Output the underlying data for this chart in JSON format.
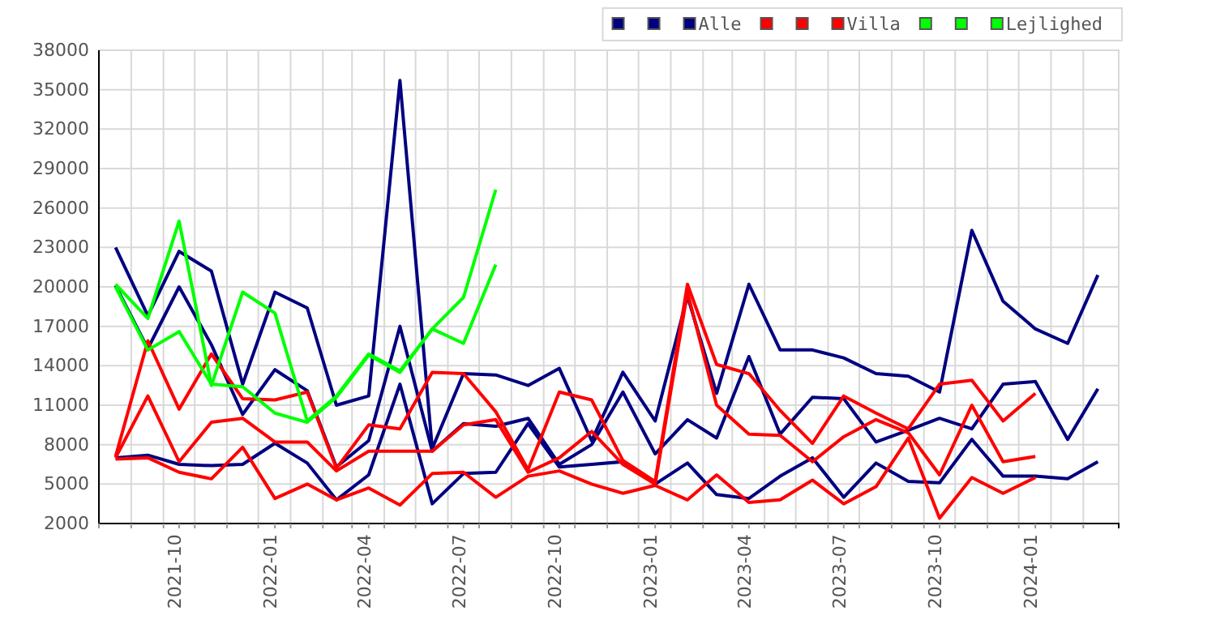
{
  "chart_data": {
    "type": "line",
    "legend": "top right",
    "grid": true,
    "line_style": "solid",
    "marker": "none",
    "x": [
      "2021-08",
      "2021-09",
      "2021-10",
      "2021-11",
      "2021-12",
      "2022-01",
      "2022-02",
      "2022-03",
      "2022-04",
      "2022-05",
      "2022-06",
      "2022-07",
      "2022-08",
      "2022-09",
      "2022-10",
      "2022-11",
      "2022-12",
      "2023-01",
      "2023-02",
      "2023-03",
      "2023-04",
      "2023-05",
      "2023-06",
      "2023-07",
      "2023-08",
      "2023-09",
      "2023-10",
      "2023-11",
      "2023-12",
      "2024-01",
      "2024-02",
      "2024-03"
    ],
    "xlim": [
      "2021-07-16",
      "2024-03-21"
    ],
    "xticks": [
      "2021-10",
      "2022-01",
      "2022-04",
      "2022-07",
      "2022-10",
      "2023-01",
      "2023-04",
      "2023-07",
      "2023-10",
      "2024-01",
      {
        "value": "2021-07-16",
        "label": null
      },
      {
        "value": "2021-08-16",
        "label": null
      },
      {
        "value": "2021-09-16",
        "label": null
      },
      {
        "value": "2021-10-16",
        "label": null
      },
      {
        "value": "2021-11-16",
        "label": null
      },
      {
        "value": "2021-12-16",
        "label": null
      },
      {
        "value": "2022-01-16",
        "label": null
      },
      {
        "value": "2022-02-16",
        "label": null
      },
      {
        "value": "2022-03-16",
        "label": null
      },
      {
        "value": "2022-04-16",
        "label": null
      },
      {
        "value": "2022-05-16",
        "label": null
      },
      {
        "value": "2022-06-16",
        "label": null
      },
      {
        "value": "2022-07-16",
        "label": null
      },
      {
        "value": "2022-08-16",
        "label": null
      },
      {
        "value": "2022-09-16",
        "label": null
      },
      {
        "value": "2022-10-16",
        "label": null
      },
      {
        "value": "2022-11-16",
        "label": null
      },
      {
        "value": "2022-12-16",
        "label": null
      },
      {
        "value": "2023-01-16",
        "label": null
      },
      {
        "value": "2023-02-16",
        "label": null
      },
      {
        "value": "2023-03-16",
        "label": null
      },
      {
        "value": "2023-04-16",
        "label": null
      },
      {
        "value": "2023-05-16",
        "label": null
      },
      {
        "value": "2023-06-16",
        "label": null
      },
      {
        "value": "2023-07-16",
        "label": null
      },
      {
        "value": "2023-08-16",
        "label": null
      },
      {
        "value": "2023-09-16",
        "label": null
      },
      {
        "value": "2023-10-16",
        "label": null
      },
      {
        "value": "2023-11-16",
        "label": null
      },
      {
        "value": "2023-12-16",
        "label": null
      },
      {
        "value": "2024-01-16",
        "label": null
      },
      {
        "value": "2024-02-16",
        "label": null
      }
    ],
    "ylim": [
      2000,
      38000
    ],
    "yticks": [
      2000,
      5000,
      8000,
      11000,
      14000,
      17000,
      20000,
      23000,
      26000,
      29000,
      32000,
      35000,
      38000
    ],
    "series": [
      {
        "color": "#000080",
        "values": [
          23000,
          17800,
          22700,
          21200,
          12600,
          19600,
          18400,
          11000,
          11700,
          35700,
          7700,
          13400,
          13300,
          12500,
          13800,
          8300,
          13500,
          9800,
          19300,
          11900,
          20200,
          15200,
          15200,
          14600,
          13400,
          13200,
          12000,
          24300,
          18900,
          16800,
          15700,
          20900
        ]
      },
      {
        "color": "#000080",
        "values": [
          20100,
          15300,
          20000,
          15600,
          10300,
          13700,
          12100,
          6300,
          8300,
          17000,
          7500,
          9600,
          9400,
          10000,
          6500,
          8000,
          12000,
          7300,
          9900,
          8500,
          14700,
          8800,
          11600,
          11500,
          8200,
          9100,
          10000,
          9200,
          12600,
          12800,
          8400,
          12250
        ]
      },
      {
        "name": "Alle",
        "color": "#000080",
        "values": [
          7000,
          7200,
          6500,
          6400,
          6500,
          8100,
          6600,
          3800,
          5700,
          12600,
          3500,
          5800,
          5900,
          9600,
          6300,
          6500,
          6700,
          5000,
          6600,
          4200,
          3900,
          5600,
          7000,
          4000,
          6600,
          5200,
          5100,
          8400,
          5600,
          5600,
          5400,
          6700
        ]
      },
      {
        "color": "#ff0000",
        "values": [
          7100,
          15900,
          10700,
          14900,
          11500,
          11400,
          12000,
          6200,
          9500,
          9200,
          13500,
          13400,
          10500,
          6100,
          12000,
          11400,
          6800,
          5200,
          20200,
          14100,
          13400,
          10600,
          8100,
          11700,
          10400,
          9200,
          12600,
          12900,
          9800,
          11900,
          null,
          null
        ]
      },
      {
        "color": "#ff0000",
        "values": [
          7000,
          11700,
          6700,
          9700,
          10000,
          8200,
          8200,
          6000,
          7500,
          7500,
          7500,
          9500,
          9900,
          5900,
          7000,
          9000,
          6500,
          5000,
          19600,
          11000,
          8800,
          8700,
          6700,
          8600,
          9900,
          8900,
          5700,
          11000,
          6700,
          7100,
          null,
          null
        ]
      },
      {
        "name": "Villa",
        "color": "#ff0000",
        "values": [
          6900,
          7000,
          5900,
          5400,
          7800,
          3900,
          5000,
          3800,
          4700,
          3400,
          5800,
          5900,
          4000,
          5600,
          6000,
          5000,
          4300,
          4900,
          3800,
          5700,
          3600,
          3800,
          5300,
          3500,
          4800,
          8500,
          2400,
          5500,
          4300,
          5500,
          null,
          null
        ]
      },
      {
        "color": "#00ff00",
        "values": [
          null,
          null,
          null,
          null,
          null,
          null,
          null,
          null,
          null,
          null,
          null,
          null,
          null,
          null,
          null,
          null,
          null,
          null,
          null,
          null,
          null,
          null,
          null,
          null,
          null,
          null,
          null,
          null,
          null,
          null,
          null,
          null
        ]
      },
      {
        "color": "#00ff00",
        "values": [
          20000,
          15200,
          16600,
          12600,
          12400,
          10400,
          9700,
          11600,
          14800,
          13500,
          16800,
          15700,
          21700,
          null,
          null,
          null,
          null,
          null,
          null,
          null,
          null,
          null,
          null,
          null,
          null,
          null,
          null,
          null,
          null,
          null,
          null,
          null
        ]
      },
      {
        "name": "Lejlighed",
        "color": "#00ff00",
        "values": [
          20200,
          17600,
          25000,
          12500,
          19600,
          18000,
          9800,
          11700,
          14900,
          13600,
          16800,
          19200,
          27400,
          null,
          null,
          null,
          null,
          null,
          null,
          null,
          null,
          null,
          null,
          null,
          null,
          null,
          null,
          null,
          null,
          null,
          null,
          null
        ]
      }
    ]
  }
}
